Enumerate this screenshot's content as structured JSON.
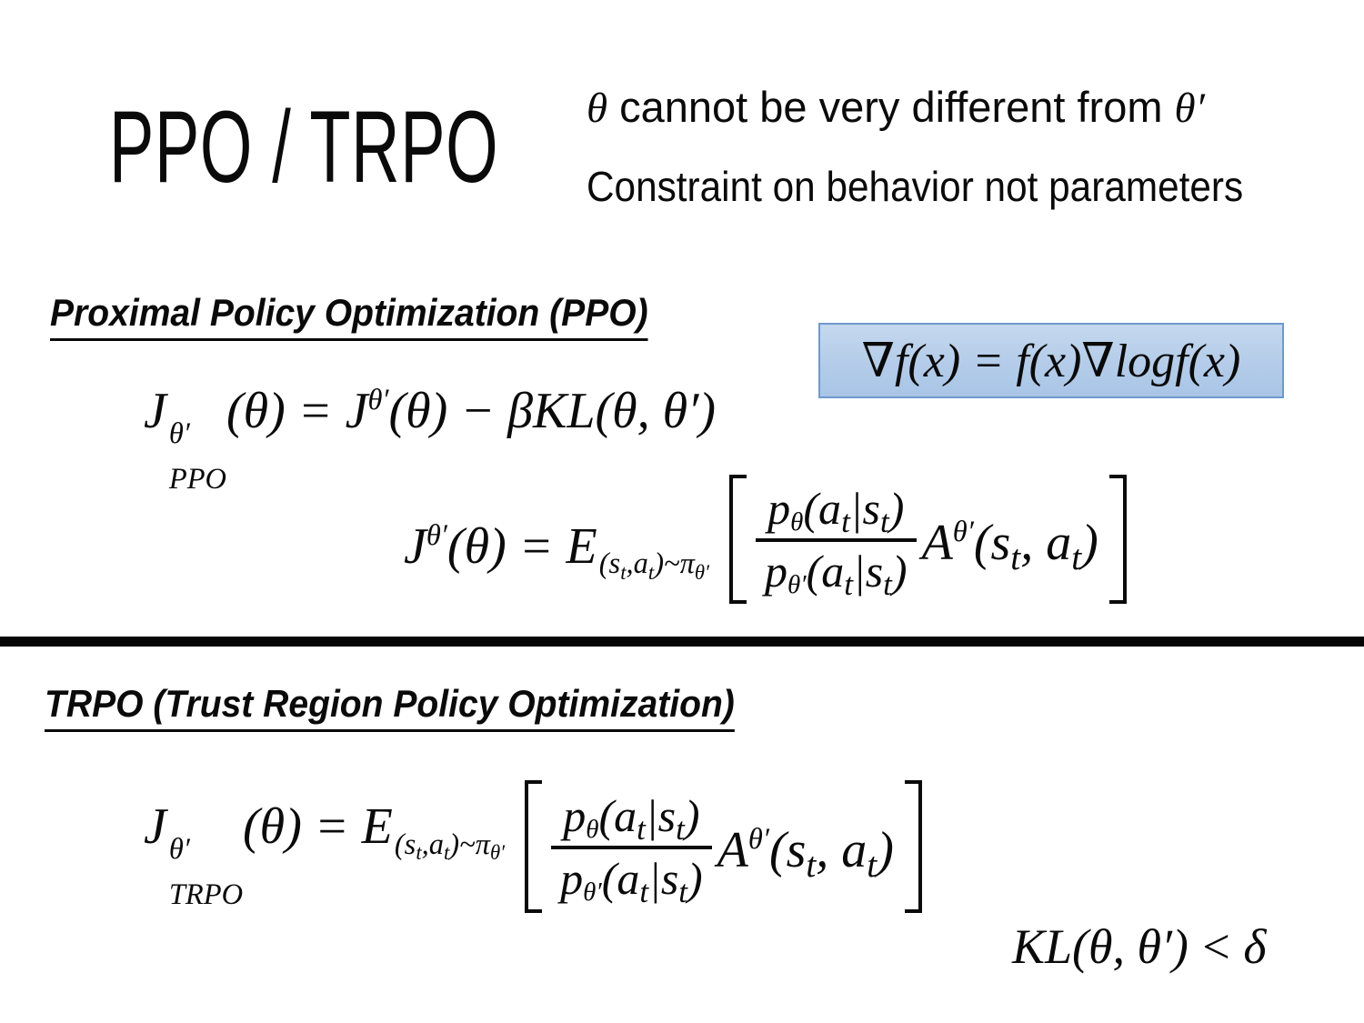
{
  "slide": {
    "title": "PPO / TRPO",
    "annotation": {
      "line1_theta": "θ",
      "line1_text": "cannot be very different from",
      "line1_theta_prime": "θ′",
      "line2": "Constraint on behavior not parameters"
    },
    "sections": {
      "ppo_heading": "Proximal Policy Optimization (PPO)",
      "trpo_heading": "TRPO (Trust Region Policy Optimization)"
    },
    "colors": {
      "background": "#ffffff",
      "text": "#000000",
      "highlight_fill_top": "#c5d8ee",
      "highlight_fill_bottom": "#a9c5e6",
      "highlight_border": "#6f99cb",
      "divider": "#000000"
    }
  },
  "math": {
    "J": "J",
    "theta": "θ",
    "theta_prime": "θ′",
    "arg_theta": "(θ)",
    "equals": "=",
    "minus": "−",
    "ppo_subscript": "PPO",
    "trpo_subscript": "TRPO",
    "beta_kl_term": "βKL(θ, θ′)",
    "grad_identity": "∇f(x) = f(x)∇logf(x)",
    "expectation_E": "E",
    "e_sub_open": "(s",
    "e_sub_t": "t",
    "e_sub_mid": ",a",
    "e_sub_close": ")~π",
    "p": "p",
    "ratio_open": "(a",
    "ratio_bar": "|s",
    "ratio_close": ")",
    "A": "A",
    "adv_open": "(s",
    "adv_mid": ", a",
    "adv_close": ")",
    "kl_term": "KL(θ, θ′)",
    "less_than": "<",
    "delta": "δ"
  }
}
